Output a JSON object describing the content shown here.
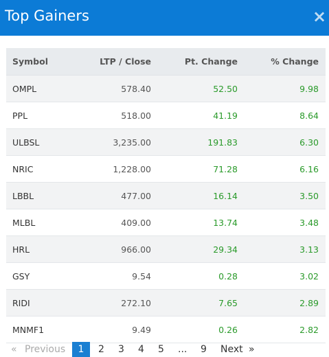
{
  "dialog": {
    "title": "Top Gainers",
    "close_glyph": "×"
  },
  "table": {
    "headers": [
      "Symbol",
      "LTP / Close",
      "Pt. Change",
      "% Change"
    ],
    "rows": [
      {
        "symbol": "OMPL",
        "ltp": "578.40",
        "pt_change": "52.50",
        "pct_change": "9.98"
      },
      {
        "symbol": "PPL",
        "ltp": "518.00",
        "pt_change": "41.19",
        "pct_change": "8.64"
      },
      {
        "symbol": "ULBSL",
        "ltp": "3,235.00",
        "pt_change": "191.83",
        "pct_change": "6.30"
      },
      {
        "symbol": "NRIC",
        "ltp": "1,228.00",
        "pt_change": "71.28",
        "pct_change": "6.16"
      },
      {
        "symbol": "LBBL",
        "ltp": "477.00",
        "pt_change": "16.14",
        "pct_change": "3.50"
      },
      {
        "symbol": "MLBL",
        "ltp": "409.00",
        "pt_change": "13.74",
        "pct_change": "3.48"
      },
      {
        "symbol": "HRL",
        "ltp": "966.00",
        "pt_change": "29.34",
        "pct_change": "3.13"
      },
      {
        "symbol": "GSY",
        "ltp": "9.54",
        "pt_change": "0.28",
        "pct_change": "3.02"
      },
      {
        "symbol": "RIDI",
        "ltp": "272.10",
        "pt_change": "7.65",
        "pct_change": "2.89"
      },
      {
        "symbol": "MNMF1",
        "ltp": "9.49",
        "pt_change": "0.26",
        "pct_change": "2.82"
      }
    ]
  },
  "pagination": {
    "first_glyph": "«",
    "previous_label": "Previous",
    "pages": [
      "1",
      "2",
      "3",
      "4",
      "5",
      "...",
      "9"
    ],
    "current_page": "1",
    "next_label": "Next",
    "last_glyph": "»"
  },
  "colors": {
    "header_bg": "#0c7bd6",
    "positive": "#2a9a2a",
    "active_page": "#1a7fd2"
  }
}
